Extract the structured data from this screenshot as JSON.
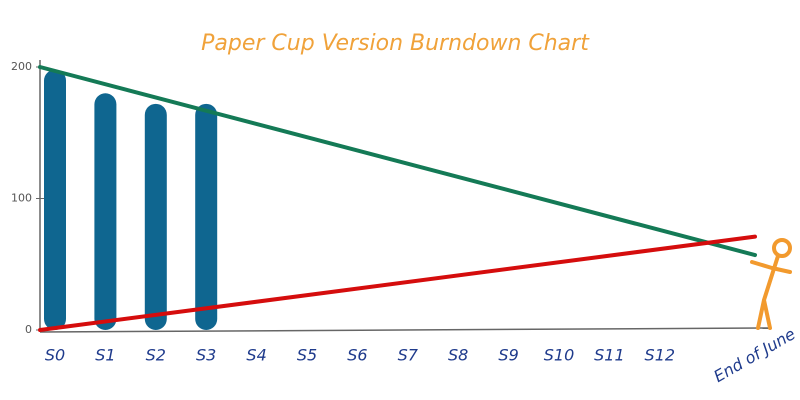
{
  "chart_data": {
    "type": "bar",
    "title": "Paper Cup Version Burndown Chart",
    "categories": [
      "S0",
      "S1",
      "S2",
      "S3",
      "S4",
      "S5",
      "S6",
      "S7",
      "S8",
      "S9",
      "S10",
      "S11",
      "S12",
      "End of June"
    ],
    "values": [
      198,
      180,
      172,
      172,
      null,
      null,
      null,
      null,
      null,
      null,
      null,
      null,
      null,
      null
    ],
    "color": "#0f6690",
    "lines": [
      {
        "color": "#147a56",
        "values": [
          200,
          57
        ]
      },
      {
        "color": "#d50d0d",
        "values": [
          0,
          71
        ]
      }
    ],
    "ylim": [
      0,
      200
    ],
    "yticks": [
      0,
      100,
      200
    ]
  }
}
